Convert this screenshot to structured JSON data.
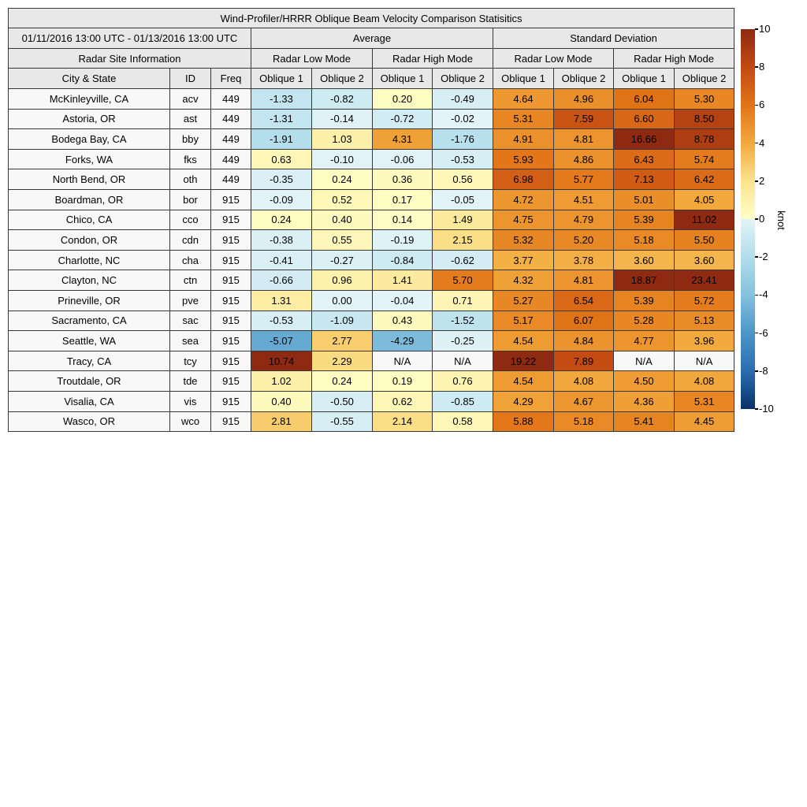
{
  "chart_data": {
    "type": "heatmap",
    "title": "Wind-Profiler/HRRR Oblique Beam Velocity Comparison Statisitics",
    "date_range": "01/11/2016 13:00 UTC - 01/13/2016 13:00 UTC",
    "site_info_header": "Radar Site Information",
    "group_headers": [
      "Average",
      "Standard Deviation"
    ],
    "subgroup_headers": [
      "Radar Low Mode",
      "Radar High Mode",
      "Radar Low Mode",
      "Radar High Mode"
    ],
    "column_headers": [
      "City & State",
      "ID",
      "Freq",
      "Oblique 1",
      "Oblique 2",
      "Oblique 1",
      "Oblique 2",
      "Oblique 1",
      "Oblique 2",
      "Oblique 1",
      "Oblique 2"
    ],
    "unit": "knot",
    "colorbar": {
      "min": -10,
      "max": 10,
      "tick_labels": [
        "10",
        "8",
        "6",
        "4",
        "2",
        "0",
        "-2",
        "-4",
        "-6",
        "-8",
        "-10"
      ]
    },
    "legend_position": "right",
    "rows": [
      {
        "city": "McKinleyville, CA",
        "id": "acv",
        "freq": "449",
        "values": [
          "-1.33",
          "-0.82",
          "0.20",
          "-0.49",
          "4.64",
          "4.96",
          "6.04",
          "5.30"
        ]
      },
      {
        "city": "Astoria, OR",
        "id": "ast",
        "freq": "449",
        "values": [
          "-1.31",
          "-0.14",
          "-0.72",
          "-0.02",
          "5.31",
          "7.59",
          "6.60",
          "8.50"
        ]
      },
      {
        "city": "Bodega Bay, CA",
        "id": "bby",
        "freq": "449",
        "values": [
          "-1.91",
          "1.03",
          "4.31",
          "-1.76",
          "4.91",
          "4.81",
          "16.66",
          "8.78"
        ]
      },
      {
        "city": "Forks, WA",
        "id": "fks",
        "freq": "449",
        "values": [
          "0.63",
          "-0.10",
          "-0.06",
          "-0.53",
          "5.93",
          "4.86",
          "6.43",
          "5.74"
        ]
      },
      {
        "city": "North Bend, OR",
        "id": "oth",
        "freq": "449",
        "values": [
          "-0.35",
          "0.24",
          "0.36",
          "0.56",
          "6.98",
          "5.77",
          "7.13",
          "6.42"
        ]
      },
      {
        "city": "Boardman, OR",
        "id": "bor",
        "freq": "915",
        "values": [
          "-0.09",
          "0.52",
          "0.17",
          "-0.05",
          "4.72",
          "4.51",
          "5.01",
          "4.05"
        ]
      },
      {
        "city": "Chico, CA",
        "id": "cco",
        "freq": "915",
        "values": [
          "0.24",
          "0.40",
          "0.14",
          "1.49",
          "4.75",
          "4.79",
          "5.39",
          "11.02"
        ]
      },
      {
        "city": "Condon, OR",
        "id": "cdn",
        "freq": "915",
        "values": [
          "-0.38",
          "0.55",
          "-0.19",
          "2.15",
          "5.32",
          "5.20",
          "5.18",
          "5.50"
        ]
      },
      {
        "city": "Charlotte, NC",
        "id": "cha",
        "freq": "915",
        "values": [
          "-0.41",
          "-0.27",
          "-0.84",
          "-0.62",
          "3.77",
          "3.78",
          "3.60",
          "3.60"
        ]
      },
      {
        "city": "Clayton, NC",
        "id": "ctn",
        "freq": "915",
        "values": [
          "-0.66",
          "0.96",
          "1.41",
          "5.70",
          "4.32",
          "4.81",
          "18.87",
          "23.41"
        ]
      },
      {
        "city": "Prineville, OR",
        "id": "pve",
        "freq": "915",
        "values": [
          "1.31",
          "0.00",
          "-0.04",
          "0.71",
          "5.27",
          "6.54",
          "5.39",
          "5.72"
        ]
      },
      {
        "city": "Sacramento, CA",
        "id": "sac",
        "freq": "915",
        "values": [
          "-0.53",
          "-1.09",
          "0.43",
          "-1.52",
          "5.17",
          "6.07",
          "5.28",
          "5.13"
        ]
      },
      {
        "city": "Seattle, WA",
        "id": "sea",
        "freq": "915",
        "values": [
          "-5.07",
          "2.77",
          "-4.29",
          "-0.25",
          "4.54",
          "4.84",
          "4.77",
          "3.96"
        ]
      },
      {
        "city": "Tracy, CA",
        "id": "tcy",
        "freq": "915",
        "values": [
          "10.74",
          "2.29",
          "N/A",
          "N/A",
          "19.22",
          "7.89",
          "N/A",
          "N/A"
        ]
      },
      {
        "city": "Troutdale, OR",
        "id": "tde",
        "freq": "915",
        "values": [
          "1.02",
          "0.24",
          "0.19",
          "0.76",
          "4.54",
          "4.08",
          "4.50",
          "4.08"
        ]
      },
      {
        "city": "Visalia, CA",
        "id": "vis",
        "freq": "915",
        "values": [
          "0.40",
          "-0.50",
          "0.62",
          "-0.85",
          "4.29",
          "4.67",
          "4.36",
          "5.31"
        ]
      },
      {
        "city": "Wasco, OR",
        "id": "wco",
        "freq": "915",
        "values": [
          "2.81",
          "-0.55",
          "2.14",
          "0.58",
          "5.88",
          "5.18",
          "5.41",
          "4.45"
        ]
      }
    ],
    "color_value_overrides": [
      {
        "row": 10,
        "col": 1,
        "value": -0.001
      }
    ]
  },
  "colors": {
    "header_bg": "#e8e8e8",
    "label_bg": "#f8f8f8",
    "na_cell_bg": "#f8f8f8",
    "border": "#383838",
    "pos_ramp": [
      [
        0,
        "#ffffc9"
      ],
      [
        0.2,
        "#fbe38d"
      ],
      [
        0.4,
        "#f2a93c"
      ],
      [
        0.6,
        "#e27417"
      ],
      [
        0.8,
        "#c24a12"
      ],
      [
        1,
        "#8e2a12"
      ]
    ],
    "neg_ramp": [
      [
        0,
        "#e3f4f8"
      ],
      [
        0.2,
        "#b2ddea"
      ],
      [
        0.4,
        "#86c1dd"
      ],
      [
        0.6,
        "#4b96c8"
      ],
      [
        0.8,
        "#2b6db1"
      ],
      [
        1,
        "#0a3168"
      ]
    ]
  }
}
